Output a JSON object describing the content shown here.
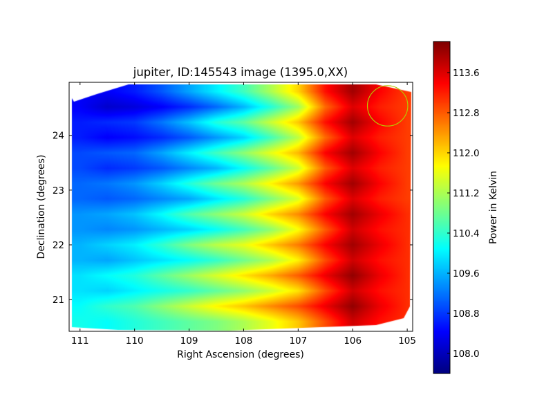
{
  "chart_data": {
    "type": "heatmap",
    "title": "jupiter, ID:145543 image (1395.0,XX)",
    "xlabel": "Right Ascension (degrees)",
    "ylabel": "Declination (degrees)",
    "xlim": [
      111.2,
      104.9
    ],
    "ylim": [
      20.42,
      24.97
    ],
    "xticks": [
      "111",
      "110",
      "109",
      "108",
      "107",
      "106",
      "105"
    ],
    "xtick_values": [
      111,
      110,
      109,
      108,
      107,
      106,
      105
    ],
    "yticks": [
      "24",
      "23",
      "22",
      "21"
    ],
    "ytick_values": [
      24,
      23,
      22,
      21
    ],
    "colormap": "jet",
    "colorbar": {
      "label": "Power in Kelvin",
      "range": [
        107.6,
        114.22
      ],
      "ticks": [
        "113.6",
        "112.8",
        "112.0",
        "111.2",
        "110.4",
        "109.6",
        "108.8",
        "108.0"
      ],
      "tick_values": [
        113.6,
        112.8,
        112.0,
        111.2,
        110.4,
        109.6,
        108.8,
        108.0
      ]
    },
    "grid": {
      "ra": [
        111,
        110.5,
        110,
        109.5,
        109,
        108.5,
        108,
        107.5,
        107,
        106.5,
        106,
        105.5,
        105
      ],
      "dec": [
        24.8,
        24.52,
        24.24,
        23.96,
        23.68,
        23.4,
        23.12,
        22.84,
        22.56,
        22.28,
        22.0,
        21.72,
        21.44,
        21.16,
        20.88,
        20.6
      ],
      "values": [
        [
          108.4,
          108.4,
          108.6,
          109.0,
          109.5,
          110.0,
          110.5,
          111.2,
          112.0,
          113.3,
          114.0,
          113.4,
          113.0
        ],
        [
          108.4,
          108.1,
          108.2,
          108.4,
          108.7,
          109.1,
          109.6,
          110.3,
          111.1,
          112.7,
          113.6,
          113.2,
          113.0
        ],
        [
          108.6,
          108.7,
          108.8,
          109.2,
          109.7,
          110.3,
          110.7,
          111.4,
          112.1,
          113.3,
          114.0,
          113.4,
          113.0
        ],
        [
          108.6,
          108.4,
          108.5,
          108.7,
          109.0,
          109.4,
          109.8,
          110.5,
          111.3,
          112.7,
          113.6,
          113.2,
          113.0
        ],
        [
          108.9,
          109.0,
          109.1,
          109.5,
          110.0,
          110.5,
          111.0,
          111.6,
          112.2,
          113.4,
          114.0,
          113.4,
          113.0
        ],
        [
          108.9,
          108.7,
          108.8,
          109.0,
          109.3,
          109.6,
          110.1,
          110.7,
          111.4,
          112.8,
          113.6,
          113.2,
          113.0
        ],
        [
          109.1,
          109.2,
          109.4,
          109.8,
          110.3,
          110.8,
          111.2,
          111.8,
          112.4,
          113.4,
          114.0,
          113.4,
          113.0
        ],
        [
          109.1,
          109.0,
          109.1,
          109.3,
          109.5,
          109.9,
          110.3,
          110.9,
          111.5,
          112.8,
          113.6,
          113.2,
          113.0
        ],
        [
          109.4,
          109.5,
          109.7,
          110.1,
          110.6,
          111.0,
          111.4,
          112.0,
          112.5,
          113.4,
          114.0,
          113.5,
          113.1
        ],
        [
          109.4,
          109.3,
          109.4,
          109.6,
          109.8,
          110.1,
          110.5,
          111.0,
          111.7,
          112.8,
          113.7,
          113.3,
          113.1
        ],
        [
          109.6,
          109.8,
          110.0,
          110.4,
          110.9,
          111.3,
          111.6,
          112.1,
          112.6,
          113.4,
          114.0,
          113.5,
          113.1
        ],
        [
          109.6,
          109.5,
          109.7,
          109.9,
          110.1,
          110.4,
          110.8,
          111.2,
          111.8,
          112.9,
          113.7,
          113.3,
          113.1
        ],
        [
          109.9,
          110.1,
          110.3,
          110.7,
          111.1,
          111.5,
          111.9,
          112.3,
          112.8,
          113.5,
          114.1,
          113.5,
          113.1
        ],
        [
          109.9,
          109.8,
          110.0,
          110.2,
          110.4,
          110.7,
          111.0,
          111.4,
          111.9,
          112.9,
          113.7,
          113.3,
          113.1
        ],
        [
          110.1,
          110.4,
          110.6,
          111.0,
          111.4,
          111.8,
          112.1,
          112.5,
          112.9,
          113.5,
          114.1,
          113.5,
          113.1
        ],
        [
          110.2,
          110.1,
          110.3,
          110.5,
          110.7,
          110.9,
          111.2,
          111.6,
          112.1,
          112.9,
          113.7,
          113.3,
          113.1
        ]
      ]
    },
    "annotations": [
      {
        "type": "circle",
        "ra": 105.36,
        "dec": 24.54,
        "radius_deg": 0.37,
        "color": "#b8c800"
      }
    ]
  }
}
